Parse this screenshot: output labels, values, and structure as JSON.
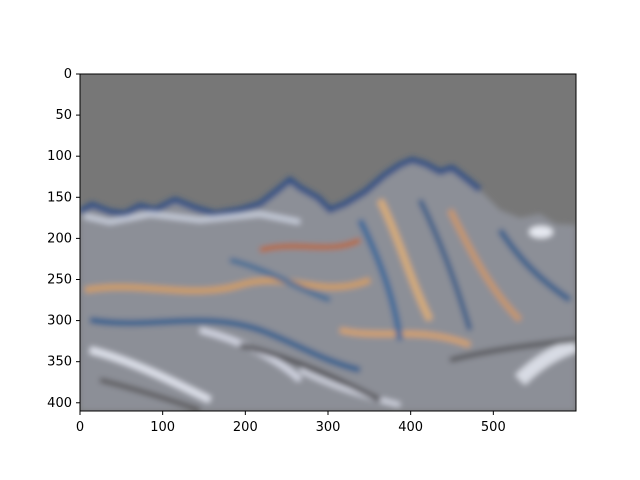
{
  "chart_data": {
    "type": "image",
    "title": "",
    "xlabel": "",
    "ylabel": "",
    "xlim": [
      0,
      600
    ],
    "ylim": [
      410,
      0
    ],
    "x_ticks": [
      0,
      100,
      200,
      300,
      400,
      500
    ],
    "y_ticks": [
      0,
      50,
      100,
      150,
      200,
      250,
      300,
      350,
      400
    ],
    "image_size": {
      "width": 600,
      "height": 410
    },
    "image_description_colors": {
      "sky": "#7a7a7a",
      "blue": "#2f5d8a",
      "orange": "#d8a46a",
      "light": "#d7d9e6",
      "dark": "#4a4a4a"
    },
    "grid": false
  }
}
